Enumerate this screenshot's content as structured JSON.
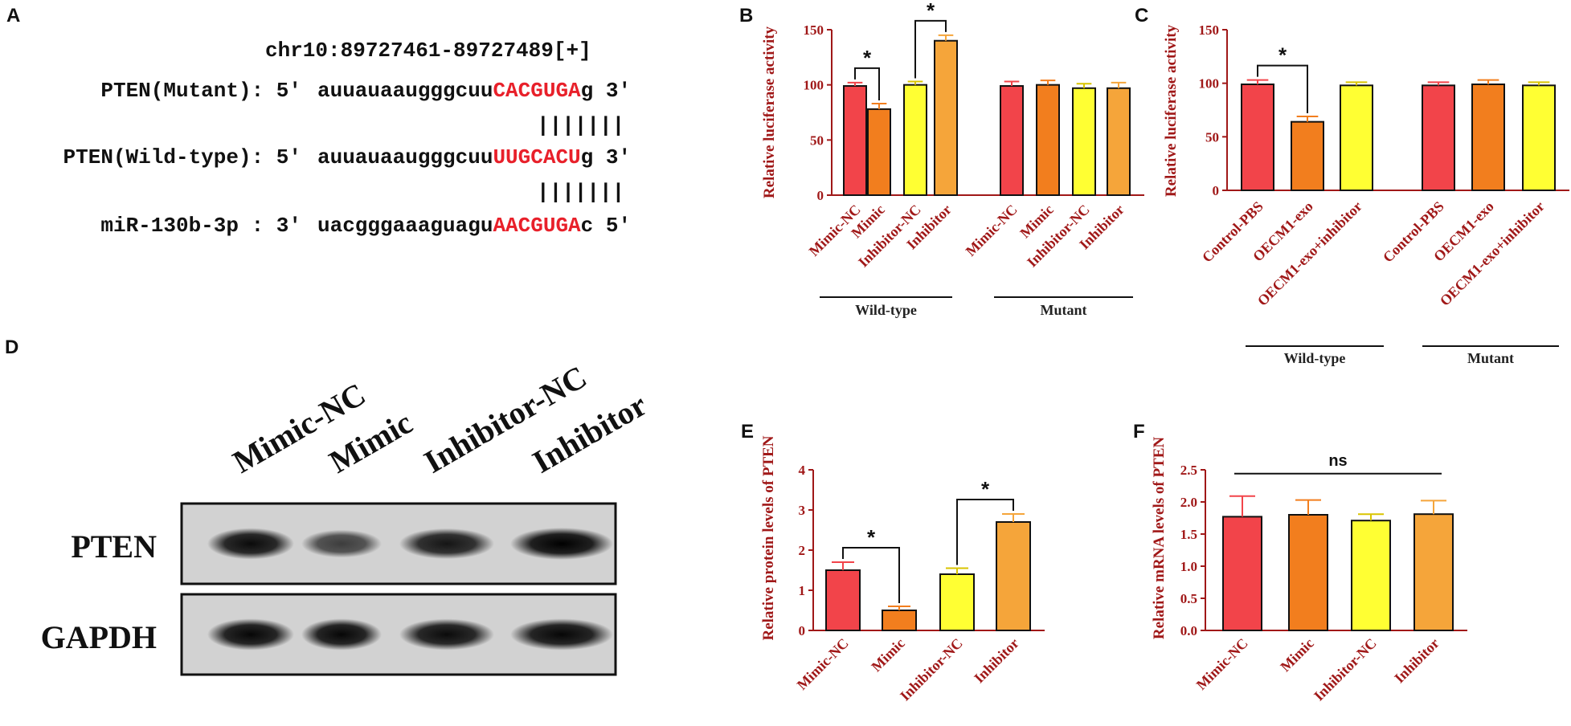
{
  "panelA": {
    "letter": "A",
    "locus": "chr10:89727461-89727489[+]",
    "rows": [
      {
        "label": "PTEN(Mutant): 5'",
        "seq": "auuauaaugggcuu",
        "seed": "CACGUGA",
        "tail": "g 3'"
      },
      {
        "label": "PTEN(Wild-type): 5'",
        "seq": "auuauaaugggcuu",
        "seed": "UUGCACU",
        "tail": "g 3'"
      },
      {
        "label": "miR-130b-3p : 3'",
        "seq": "uacgggaaaguagu",
        "seed": "AACGUGA",
        "tail": "c 5'"
      }
    ],
    "pairs": "|||||||"
  },
  "panelD": {
    "letter": "D",
    "lanes": [
      "Mimic-NC",
      "Mimic",
      "Inhibitor-NC",
      "Inhibitor"
    ],
    "rows": [
      "PTEN",
      "GAPDH"
    ],
    "band_intensity": {
      "PTEN": [
        0.92,
        0.55,
        0.85,
        1.0
      ],
      "GAPDH": [
        0.95,
        0.95,
        0.92,
        0.95
      ]
    }
  },
  "colors": {
    "red": "#f2444a",
    "orange": "#f27e1e",
    "yellow": "#ffff33",
    "lightorange": "#f5a53a",
    "axis": "#a01818"
  },
  "chart_data": [
    {
      "id": "B",
      "letter": "B",
      "type": "bar",
      "ylabel": "Relative luciferase activity",
      "ylim": [
        0,
        150
      ],
      "yticks": [
        "0",
        "50",
        "100",
        "150"
      ],
      "groups": [
        {
          "name": "Wild-type",
          "categories": [
            "Mimic-NC",
            "Mimic",
            "Inhibitor-NC",
            "Inhibitor"
          ],
          "values": [
            99,
            78,
            100,
            140
          ],
          "errors": [
            3,
            5,
            3,
            5
          ]
        },
        {
          "name": "Mutant",
          "categories": [
            "Mimic-NC",
            "Mimic",
            "Inhibitor-NC",
            "Inhibitor"
          ],
          "values": [
            99,
            100,
            97,
            97
          ],
          "errors": [
            4,
            4,
            4,
            5
          ]
        }
      ],
      "significance": [
        {
          "label": "*",
          "from": [
            0,
            0
          ],
          "to": [
            0,
            1
          ]
        },
        {
          "label": "*",
          "from": [
            0,
            2
          ],
          "to": [
            0,
            3
          ]
        }
      ]
    },
    {
      "id": "C",
      "letter": "C",
      "type": "bar",
      "ylabel": "Relative luciferase activity",
      "ylim": [
        0,
        150
      ],
      "yticks": [
        "0",
        "50",
        "100",
        "150"
      ],
      "groups": [
        {
          "name": "Wild-type",
          "categories": [
            "Control-PBS",
            "OECM1-exo",
            "OECM1-exo+inhibitor"
          ],
          "values": [
            99,
            64,
            98
          ],
          "errors": [
            4,
            5,
            3
          ]
        },
        {
          "name": "Mutant",
          "categories": [
            "Control-PBS",
            "OECM1-exo",
            "OECM1-exo+inhibitor"
          ],
          "values": [
            98,
            99,
            98
          ],
          "errors": [
            3,
            4,
            3
          ]
        }
      ],
      "significance": [
        {
          "label": "*",
          "from": [
            0,
            0
          ],
          "to": [
            0,
            1
          ]
        }
      ]
    },
    {
      "id": "E",
      "letter": "E",
      "type": "bar",
      "ylabel": "Relative protein levels of PTEN",
      "ylim": [
        0,
        4
      ],
      "yticks": [
        "0",
        "1",
        "2",
        "3",
        "4"
      ],
      "groups": [
        {
          "name": "",
          "categories": [
            "Mimic-NC",
            "Mimic",
            "Inhibitor-NC",
            "Inhibitor"
          ],
          "values": [
            1.5,
            0.5,
            1.4,
            2.7
          ],
          "errors": [
            0.2,
            0.1,
            0.15,
            0.2
          ]
        }
      ],
      "significance": [
        {
          "label": "*",
          "from": [
            0,
            0
          ],
          "to": [
            0,
            1
          ]
        },
        {
          "label": "*",
          "from": [
            0,
            2
          ],
          "to": [
            0,
            3
          ]
        }
      ]
    },
    {
      "id": "F",
      "letter": "F",
      "type": "bar",
      "ylabel": "Relative mRNA levels of PTEN",
      "ylim": [
        0,
        2.5
      ],
      "yticks": [
        "0.0",
        "0.5",
        "1.0",
        "1.5",
        "2.0",
        "2.5"
      ],
      "groups": [
        {
          "name": "",
          "categories": [
            "Mimic-NC",
            "Mimic",
            "Inhibitor-NC",
            "Inhibitor"
          ],
          "values": [
            1.77,
            1.8,
            1.71,
            1.81
          ],
          "errors": [
            0.32,
            0.23,
            0.1,
            0.21
          ]
        }
      ],
      "significance": [
        {
          "label": "ns",
          "from": [
            0,
            0
          ],
          "to": [
            0,
            3
          ],
          "flat": true
        }
      ]
    }
  ]
}
